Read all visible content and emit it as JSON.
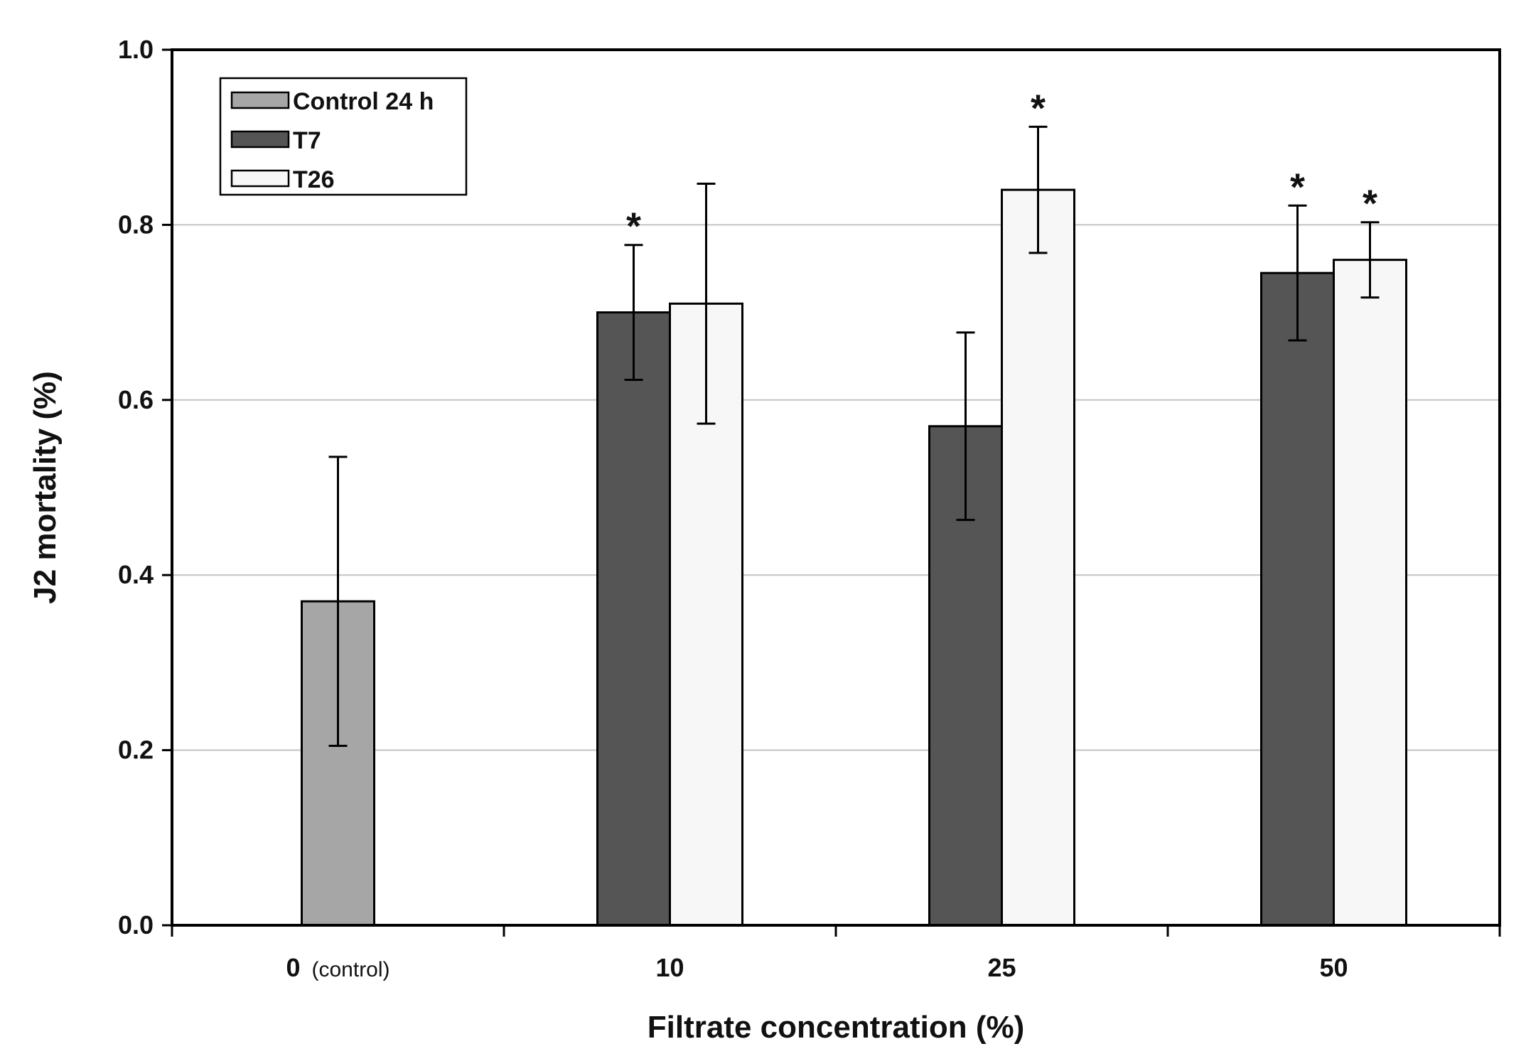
{
  "chart_data": {
    "type": "bar",
    "title": "",
    "xlabel": "Filtrate concentration (%)",
    "ylabel": "J2 mortality (%)",
    "ylim": [
      0,
      1.0
    ],
    "y_ticks": [
      "0.0",
      "0.2",
      "0.4",
      "0.6",
      "0.8",
      "1.0"
    ],
    "categories": [
      {
        "label": "0",
        "note": "(control)"
      },
      {
        "label": "10",
        "note": ""
      },
      {
        "label": "25",
        "note": ""
      },
      {
        "label": "50",
        "note": ""
      }
    ],
    "grid": true,
    "legend_position": "top-left",
    "colors": {
      "Control 24 h": "#a6a6a6",
      "T7": "#555555",
      "T26": "#f7f7f7"
    },
    "series": [
      {
        "name": "Control 24 h",
        "values": [
          0.37,
          null,
          null,
          null
        ],
        "errors": [
          0.165,
          null,
          null,
          null
        ],
        "significant": [
          false,
          false,
          false,
          false
        ]
      },
      {
        "name": "T7",
        "values": [
          null,
          0.7,
          0.57,
          0.745
        ],
        "errors": [
          null,
          0.077,
          0.107,
          0.077
        ],
        "significant": [
          false,
          true,
          false,
          true
        ]
      },
      {
        "name": "T26",
        "values": [
          null,
          0.71,
          0.84,
          0.76
        ],
        "errors": [
          null,
          0.137,
          0.072,
          0.043
        ],
        "significant": [
          false,
          false,
          true,
          true
        ]
      }
    ],
    "significance_marker": "*"
  }
}
